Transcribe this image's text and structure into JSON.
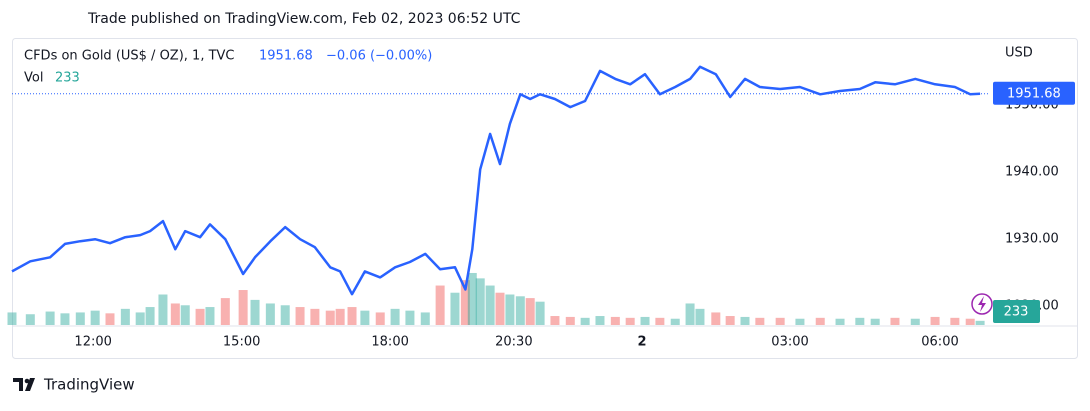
{
  "header": "Trade published on TradingView.com, Feb 02, 2023 06:52 UTC",
  "footer": "TradingView",
  "chart_data": {
    "type": "line",
    "change_label": "−0.06 (−0.00%)",
    "y_axis_label": "USD",
    "x": [
      10.36,
      10.73,
      11.13,
      11.43,
      11.74,
      12.04,
      12.34,
      12.65,
      12.95,
      13.15,
      13.41,
      13.66,
      13.86,
      14.16,
      14.36,
      14.67,
      15.03,
      15.27,
      15.58,
      15.88,
      16.18,
      16.48,
      16.79,
      16.99,
      17.23,
      17.49,
      17.8,
      18.1,
      18.4,
      18.71,
      19.01,
      19.31,
      19.52,
      19.66,
      19.82,
      20.02,
      20.22,
      20.42,
      20.63,
      20.83,
      21.03,
      21.33,
      21.64,
      21.94,
      22.24,
      22.55,
      22.85,
      23.15,
      23.45,
      23.76,
      24.06,
      24.26,
      24.58,
      24.87,
      25.17,
      25.47,
      25.88,
      26.28,
      26.69,
      27.09,
      27.49,
      27.8,
      28.2,
      28.61,
      29.01,
      29.41,
      29.72,
      29.92
    ],
    "series": [
      {
        "name": "CFDs on Gold (US$ / OZ), 1, TVC",
        "color": "#2962ff",
        "values": [
          1925.2,
          1926.7,
          1927.3,
          1929.3,
          1929.7,
          1930.0,
          1929.4,
          1930.3,
          1930.6,
          1931.2,
          1932.7,
          1928.5,
          1931.2,
          1930.3,
          1932.2,
          1930.0,
          1924.8,
          1927.3,
          1929.7,
          1931.8,
          1930.0,
          1928.8,
          1925.8,
          1925.2,
          1921.8,
          1925.2,
          1924.3,
          1925.8,
          1926.6,
          1927.8,
          1925.5,
          1925.8,
          1922.5,
          1928.5,
          1940.4,
          1945.7,
          1941.2,
          1947.2,
          1951.6,
          1950.9,
          1951.6,
          1950.9,
          1949.7,
          1950.6,
          1955.1,
          1953.9,
          1953.1,
          1954.6,
          1951.6,
          1952.7,
          1953.9,
          1955.7,
          1954.6,
          1951.2,
          1953.9,
          1952.7,
          1952.4,
          1952.7,
          1951.6,
          1952.1,
          1952.4,
          1953.4,
          1953.1,
          1953.9,
          1953.1,
          1952.7,
          1951.6,
          1951.68
        ]
      },
      {
        "name": "Vol",
        "type": "bar",
        "axis": "volume",
        "color": "#26a69a",
        "down_color": "#ef5350",
        "values": [
          700,
          600,
          750,
          650,
          700,
          800,
          650,
          900,
          700,
          1000,
          1700,
          1200,
          1100,
          900,
          1000,
          1500,
          1950,
          1400,
          1200,
          1100,
          1000,
          900,
          800,
          900,
          1000,
          800,
          700,
          900,
          800,
          700,
          2200,
          1800,
          2500,
          2900,
          2600,
          2200,
          1800,
          1700,
          1600,
          1500,
          1300,
          500,
          450,
          400,
          500,
          450,
          400,
          450,
          400,
          350,
          1200,
          900,
          700,
          500,
          450,
          400,
          400,
          350,
          400,
          350,
          400,
          350,
          400,
          350,
          450,
          400,
          350,
          233
        ]
      }
    ],
    "xlim": [
      10.36,
      30.12
    ],
    "xticks": [
      {
        "value": 12,
        "label": "12:00"
      },
      {
        "value": 15,
        "label": "15:00"
      },
      {
        "value": 18,
        "label": "18:00"
      },
      {
        "value": 20.5,
        "label": "20:30"
      },
      {
        "value": 23.09,
        "label": "2"
      },
      {
        "value": 26.08,
        "label": "03:00"
      },
      {
        "value": 29.11,
        "label": "06:00"
      }
    ],
    "ylim": [
      1917.2,
      1960.0
    ],
    "yticks": [
      {
        "value": 1920,
        "label": "1920.00"
      },
      {
        "value": 1930,
        "label": "1930.00"
      },
      {
        "value": 1940,
        "label": "1940.00"
      },
      {
        "value": 1950,
        "label": "1950.00"
      }
    ],
    "volume_ylim": [
      0,
      16000
    ]
  }
}
